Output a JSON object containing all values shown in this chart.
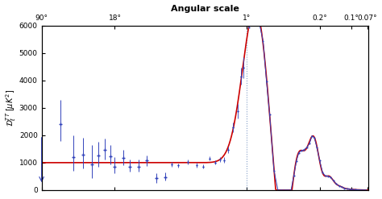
{
  "title": "Angular scale",
  "ylabel": "$\\mathcal{D}_\\ell^{TT}\\;[\\mu K^2]$",
  "ylim": [
    0,
    6000
  ],
  "yticks": [
    0,
    1000,
    2000,
    3000,
    4000,
    5000,
    6000
  ],
  "top_tick_labels": [
    "90°",
    "18°",
    "1°",
    "0.2°",
    "0.1°",
    "0.07°"
  ],
  "top_tick_ells": [
    2,
    10,
    180,
    900,
    1800,
    2580
  ],
  "vline_ell": 180,
  "xlim": [
    2,
    2600
  ],
  "background_color": "#ffffff",
  "line_color_theory": "#cc0000",
  "line_color_data": "#3344bb",
  "seed": 42
}
